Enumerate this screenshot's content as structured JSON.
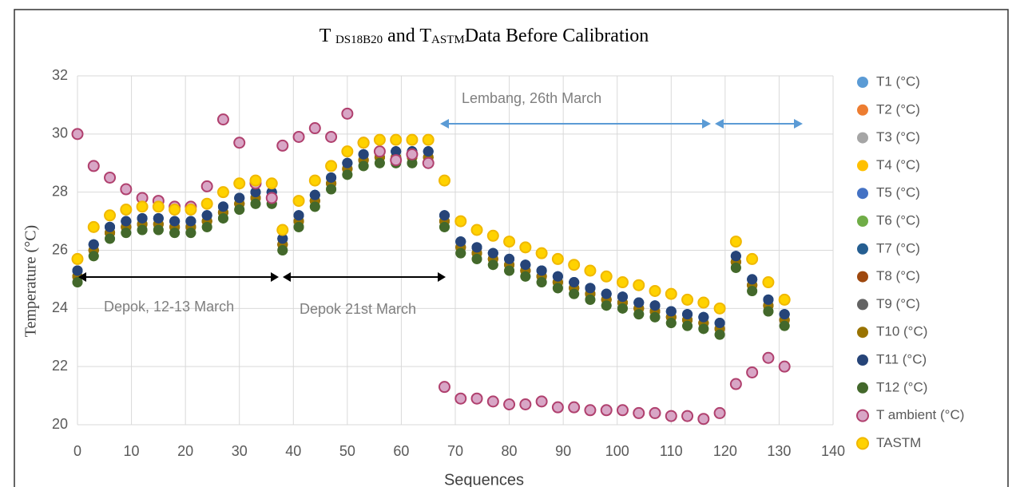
{
  "chart_data": {
    "type": "scatter",
    "title": [
      "T",
      "DS18B20",
      "and T",
      "ASTM",
      "Data Before Calibration"
    ],
    "x_label": "Sequences",
    "y_label": "Temperature   (°C)",
    "annotations": [
      "Depok, 12-13 March",
      "Depok 21st March",
      "Lembang, 26th March"
    ],
    "xlim": [
      0,
      140
    ],
    "xticks": [
      0,
      10,
      20,
      30,
      40,
      50,
      60,
      70,
      80,
      90,
      100,
      110,
      120,
      130,
      140
    ],
    "ylim": [
      20,
      32
    ],
    "yticks": [
      20,
      22,
      24,
      26,
      28,
      30,
      32
    ],
    "grid": true,
    "legend": "right",
    "x": [
      0,
      3,
      6,
      9,
      12,
      15,
      18,
      21,
      24,
      27,
      30,
      33,
      36,
      38,
      41,
      44,
      47,
      50,
      53,
      56,
      59,
      62,
      65,
      68,
      71,
      74,
      77,
      80,
      83,
      86,
      89,
      92,
      95,
      98,
      101,
      104,
      107,
      110,
      113,
      116,
      119,
      122,
      125,
      128,
      131
    ],
    "series": [
      {
        "name": "T1 (°C)",
        "color": "#5b9bd5",
        "values": [
          25.3,
          26.2,
          26.8,
          27.0,
          27.1,
          27.1,
          27.0,
          27.0,
          27.2,
          27.5,
          27.8,
          28.0,
          28.0,
          26.4,
          27.2,
          27.9,
          28.5,
          29.0,
          29.3,
          29.4,
          29.4,
          29.4,
          29.4,
          27.2,
          26.3,
          26.1,
          25.9,
          25.7,
          25.5,
          25.3,
          25.1,
          24.9,
          24.7,
          24.5,
          24.4,
          24.2,
          24.1,
          23.9,
          23.8,
          23.7,
          23.5,
          25.8,
          25.0,
          24.3,
          23.8
        ]
      },
      {
        "name": "T2 (°C)",
        "color": "#ed7d31",
        "values": [
          25.1,
          26.0,
          26.6,
          26.8,
          26.9,
          26.9,
          26.8,
          26.8,
          27.0,
          27.3,
          27.6,
          27.8,
          27.8,
          26.2,
          27.0,
          27.7,
          28.3,
          28.8,
          29.1,
          29.2,
          29.2,
          29.2,
          29.2,
          27.0,
          26.1,
          25.9,
          25.7,
          25.5,
          25.3,
          25.1,
          24.9,
          24.7,
          24.5,
          24.3,
          24.2,
          24.0,
          23.9,
          23.7,
          23.6,
          23.5,
          23.3,
          25.6,
          24.8,
          24.1,
          23.6
        ]
      },
      {
        "name": "T3 (°C)",
        "color": "#a5a5a5",
        "values": [
          25.1,
          26.0,
          26.6,
          26.8,
          26.9,
          26.9,
          26.8,
          26.8,
          27.0,
          27.3,
          27.6,
          27.8,
          27.8,
          26.2,
          27.0,
          27.7,
          28.3,
          28.8,
          29.1,
          29.2,
          29.2,
          29.2,
          29.2,
          27.0,
          26.1,
          25.9,
          25.7,
          25.5,
          25.3,
          25.1,
          24.9,
          24.7,
          24.5,
          24.3,
          24.2,
          24.0,
          23.9,
          23.7,
          23.6,
          23.5,
          23.3,
          25.6,
          24.8,
          24.1,
          23.6
        ]
      },
      {
        "name": "T4 (°C)",
        "color": "#ffc000",
        "values": [
          25.1,
          26.0,
          26.6,
          26.8,
          26.9,
          26.9,
          26.8,
          26.8,
          27.0,
          27.3,
          27.6,
          27.8,
          27.8,
          26.2,
          27.0,
          27.7,
          28.3,
          28.8,
          29.1,
          29.2,
          29.2,
          29.2,
          29.2,
          27.0,
          26.1,
          25.9,
          25.7,
          25.5,
          25.3,
          25.1,
          24.9,
          24.7,
          24.5,
          24.3,
          24.2,
          24.0,
          23.9,
          23.7,
          23.6,
          23.5,
          23.3,
          25.6,
          24.8,
          24.1,
          23.6
        ]
      },
      {
        "name": "T5 (°C)",
        "color": "#4472c4",
        "values": [
          25.3,
          26.2,
          26.8,
          27.0,
          27.1,
          27.1,
          27.0,
          27.0,
          27.2,
          27.5,
          27.8,
          28.0,
          28.0,
          26.4,
          27.2,
          27.9,
          28.5,
          29.0,
          29.3,
          29.4,
          29.4,
          29.4,
          29.4,
          27.2,
          26.3,
          26.1,
          25.9,
          25.7,
          25.5,
          25.3,
          25.1,
          24.9,
          24.7,
          24.5,
          24.4,
          24.2,
          24.1,
          23.9,
          23.8,
          23.7,
          23.5,
          25.8,
          25.0,
          24.3,
          23.8
        ]
      },
      {
        "name": "T6 (°C)",
        "color": "#70ad47",
        "values": [
          24.9,
          25.8,
          26.4,
          26.6,
          26.7,
          26.7,
          26.6,
          26.6,
          26.8,
          27.1,
          27.4,
          27.6,
          27.6,
          26.0,
          26.8,
          27.5,
          28.1,
          28.6,
          28.9,
          29.0,
          29.0,
          29.0,
          29.0,
          26.8,
          25.9,
          25.7,
          25.5,
          25.3,
          25.1,
          24.9,
          24.7,
          24.5,
          24.3,
          24.1,
          24.0,
          23.8,
          23.7,
          23.5,
          23.4,
          23.3,
          23.1,
          25.4,
          24.6,
          23.9,
          23.4
        ]
      },
      {
        "name": "T7 (°C)",
        "color": "#255e91",
        "values": [
          25.3,
          26.2,
          26.8,
          27.0,
          27.1,
          27.1,
          27.0,
          27.0,
          27.2,
          27.5,
          27.8,
          28.0,
          28.0,
          26.4,
          27.2,
          27.9,
          28.5,
          29.0,
          29.3,
          29.4,
          29.4,
          29.4,
          29.4,
          27.2,
          26.3,
          26.1,
          25.9,
          25.7,
          25.5,
          25.3,
          25.1,
          24.9,
          24.7,
          24.5,
          24.4,
          24.2,
          24.1,
          23.9,
          23.8,
          23.7,
          23.5,
          25.8,
          25.0,
          24.3,
          23.8
        ]
      },
      {
        "name": "T8 (°C)",
        "color": "#9e480e",
        "values": [
          25.1,
          26.0,
          26.6,
          26.8,
          26.9,
          26.9,
          26.8,
          26.8,
          27.0,
          27.3,
          27.6,
          27.8,
          27.8,
          26.2,
          27.0,
          27.7,
          28.3,
          28.8,
          29.1,
          29.2,
          29.2,
          29.2,
          29.2,
          27.0,
          26.1,
          25.9,
          25.7,
          25.5,
          25.3,
          25.1,
          24.9,
          24.7,
          24.5,
          24.3,
          24.2,
          24.0,
          23.9,
          23.7,
          23.6,
          23.5,
          23.3,
          25.6,
          24.8,
          24.1,
          23.6
        ]
      },
      {
        "name": "T9 (°C)",
        "color": "#636363",
        "values": [
          25.1,
          26.0,
          26.6,
          26.8,
          26.9,
          26.9,
          26.8,
          26.8,
          27.0,
          27.3,
          27.6,
          27.8,
          27.8,
          26.2,
          27.0,
          27.7,
          28.3,
          28.8,
          29.1,
          29.2,
          29.2,
          29.2,
          29.2,
          27.0,
          26.1,
          25.9,
          25.7,
          25.5,
          25.3,
          25.1,
          24.9,
          24.7,
          24.5,
          24.3,
          24.2,
          24.0,
          23.9,
          23.7,
          23.6,
          23.5,
          23.3,
          25.6,
          24.8,
          24.1,
          23.6
        ]
      },
      {
        "name": "T10 (°C)",
        "color": "#997300",
        "values": [
          25.1,
          26.0,
          26.6,
          26.8,
          26.9,
          26.9,
          26.8,
          26.8,
          27.0,
          27.3,
          27.6,
          27.8,
          27.8,
          26.2,
          27.0,
          27.7,
          28.3,
          28.8,
          29.1,
          29.2,
          29.2,
          29.2,
          29.2,
          27.0,
          26.1,
          25.9,
          25.7,
          25.5,
          25.3,
          25.1,
          24.9,
          24.7,
          24.5,
          24.3,
          24.2,
          24.0,
          23.9,
          23.7,
          23.6,
          23.5,
          23.3,
          25.6,
          24.8,
          24.1,
          23.6
        ]
      },
      {
        "name": "T11 (°C)",
        "color": "#264478",
        "values": [
          25.3,
          26.2,
          26.8,
          27.0,
          27.1,
          27.1,
          27.0,
          27.0,
          27.2,
          27.5,
          27.8,
          28.0,
          28.0,
          26.4,
          27.2,
          27.9,
          28.5,
          29.0,
          29.3,
          29.4,
          29.4,
          29.4,
          29.4,
          27.2,
          26.3,
          26.1,
          25.9,
          25.7,
          25.5,
          25.3,
          25.1,
          24.9,
          24.7,
          24.5,
          24.4,
          24.2,
          24.1,
          23.9,
          23.8,
          23.7,
          23.5,
          25.8,
          25.0,
          24.3,
          23.8
        ]
      },
      {
        "name": "T12 (°C)",
        "color": "#43682b",
        "values": [
          24.9,
          25.8,
          26.4,
          26.6,
          26.7,
          26.7,
          26.6,
          26.6,
          26.8,
          27.1,
          27.4,
          27.6,
          27.6,
          26.0,
          26.8,
          27.5,
          28.1,
          28.6,
          28.9,
          29.0,
          29.0,
          29.0,
          29.0,
          26.8,
          25.9,
          25.7,
          25.5,
          25.3,
          25.1,
          24.9,
          24.7,
          24.5,
          24.3,
          24.1,
          24.0,
          23.8,
          23.7,
          23.5,
          23.4,
          23.3,
          23.1,
          25.4,
          24.6,
          23.9,
          23.4
        ]
      },
      {
        "name": "T ambient  (°C)",
        "color": "#d8a6c6",
        "edge": "#b0406e",
        "values": [
          30.0,
          28.9,
          28.5,
          28.1,
          27.8,
          27.7,
          27.5,
          27.5,
          28.2,
          30.5,
          29.7,
          28.3,
          27.8,
          29.6,
          29.9,
          30.2,
          29.9,
          30.7,
          29.7,
          29.4,
          29.1,
          29.3,
          29.0,
          21.3,
          20.9,
          20.9,
          20.8,
          20.7,
          20.7,
          20.8,
          20.6,
          20.6,
          20.5,
          20.5,
          20.5,
          20.4,
          20.4,
          20.3,
          20.3,
          20.2,
          20.4,
          21.4,
          21.8,
          22.3,
          22.0
        ]
      },
      {
        "name": "TASTM",
        "color": "#ffd200",
        "edge": "#f0b800",
        "values": [
          25.7,
          26.8,
          27.2,
          27.4,
          27.5,
          27.5,
          27.4,
          27.4,
          27.6,
          28.0,
          28.3,
          28.4,
          28.3,
          26.7,
          27.7,
          28.4,
          28.9,
          29.4,
          29.7,
          29.8,
          29.8,
          29.8,
          29.8,
          28.4,
          27.0,
          26.7,
          26.5,
          26.3,
          26.1,
          25.9,
          25.7,
          25.5,
          25.3,
          25.1,
          24.9,
          24.8,
          24.6,
          24.5,
          24.3,
          24.2,
          24.0,
          26.3,
          25.7,
          24.9,
          24.3
        ]
      }
    ]
  }
}
